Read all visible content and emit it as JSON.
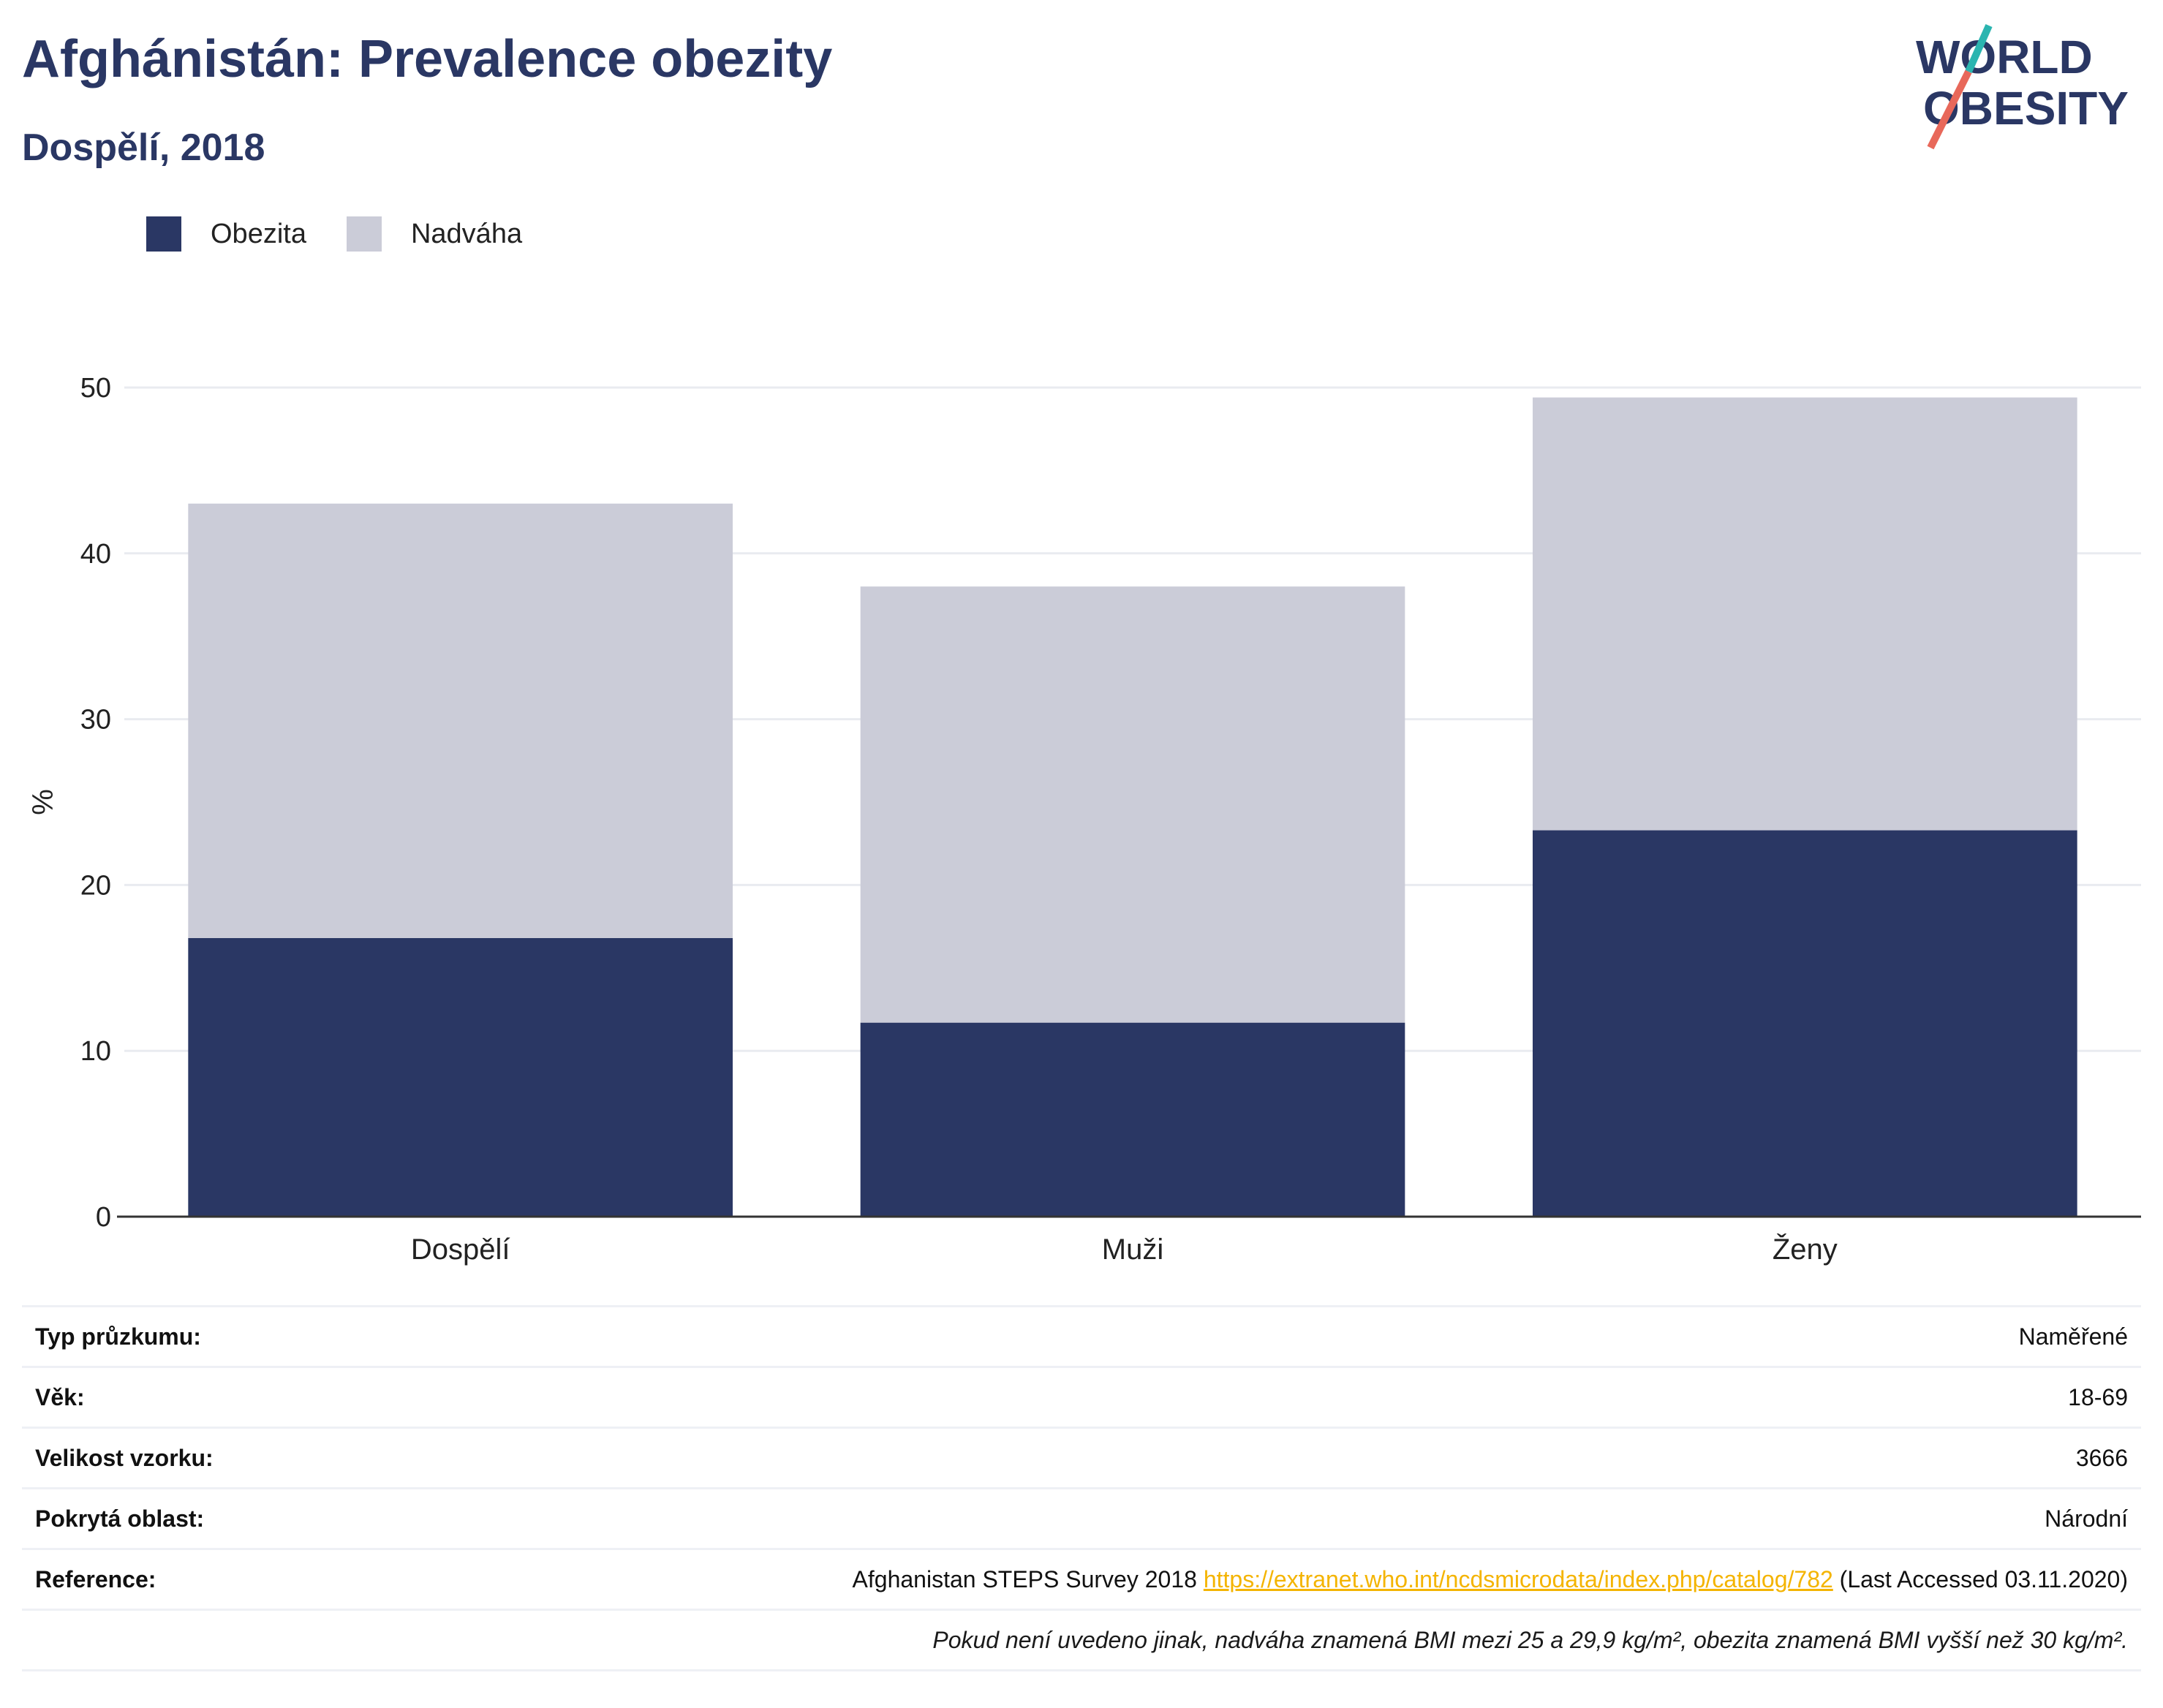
{
  "header": {
    "title": "Afghánistán: Prevalence obezity",
    "subtitle": "Dospělí, 2018",
    "logo_line1": "WORLD",
    "logo_line2": "OBESITY"
  },
  "colors": {
    "obesity": "#2a3764",
    "overweight": "#cbccd8",
    "accent_teal": "#2bb5b0",
    "accent_red": "#e8685a"
  },
  "chart_data": {
    "type": "bar",
    "stacked": true,
    "categories": [
      "Dospělí",
      "Muži",
      "Ženy"
    ],
    "series": [
      {
        "name": "Obezita",
        "values": [
          16.8,
          11.7,
          23.3
        ]
      },
      {
        "name": "Nadváha",
        "values": [
          26.2,
          26.3,
          26.1
        ]
      }
    ],
    "ylabel": "%",
    "xlabel": "",
    "ylim": [
      0,
      50
    ],
    "yticks": [
      0,
      10,
      20,
      30,
      40,
      50
    ],
    "grid": true,
    "legend": "top-left"
  },
  "meta": {
    "rows": [
      {
        "key": "Typ průzkumu:",
        "value": "Naměřené"
      },
      {
        "key": "Věk:",
        "value": "18-69"
      },
      {
        "key": "Velikost vzorku:",
        "value": "3666"
      },
      {
        "key": "Pokrytá oblast:",
        "value": "Národní"
      }
    ],
    "reference_key": "Reference:",
    "reference_text": "Afghanistan STEPS Survey 2018",
    "reference_link": "https://extranet.who.int/ncdsmicrodata/index.php/catalog/782",
    "reference_suffix": "(Last Accessed 03.11.2020)",
    "note": "Pokud není uvedeno jinak, nadváha znamená BMI mezi 25 a 29,9 kg/m², obezita znamená BMI vyšší než 30 kg/m²."
  }
}
